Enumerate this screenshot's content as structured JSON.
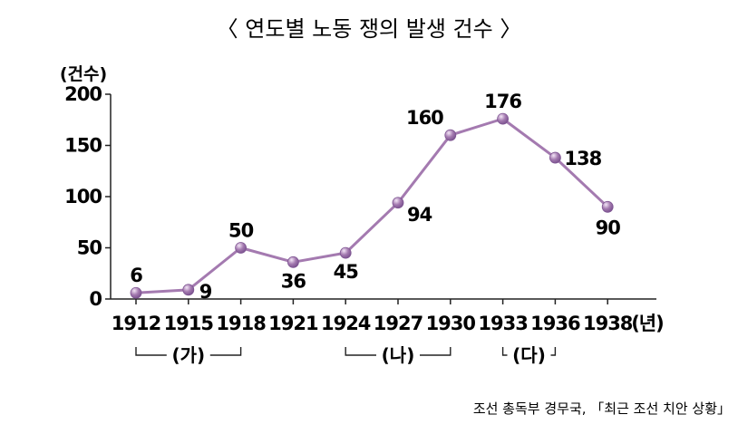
{
  "chart_data": {
    "type": "line",
    "title": "〈 연도별 노동 쟁의 발생 건수 〉",
    "ylabel": "(건수)",
    "xlabel": "(년)",
    "ylim": [
      0,
      200
    ],
    "yticks": [
      0,
      50,
      100,
      150,
      200
    ],
    "categories": [
      "1912",
      "1915",
      "1918",
      "1921",
      "1924",
      "1927",
      "1930",
      "1933",
      "1936",
      "1938"
    ],
    "series": [
      {
        "values": [
          6,
          9,
          50,
          36,
          45,
          94,
          160,
          176,
          138,
          90
        ]
      }
    ],
    "data_labels": [
      "6",
      "9",
      "50",
      "36",
      "45",
      "94",
      "160",
      "176",
      "138",
      "90"
    ],
    "groups": [
      {
        "label": "(가)",
        "from": "1912",
        "to": "1918"
      },
      {
        "label": "(나)",
        "from": "1924",
        "to": "1930"
      },
      {
        "label": "(다)",
        "from": "1933",
        "to": "1936"
      }
    ],
    "source": "조선 총독부 경무국, 「최근 조선 치안 상황」",
    "colors": {
      "line": "#a47ab0",
      "marker": "#7e5592",
      "axis": "#222222"
    }
  }
}
